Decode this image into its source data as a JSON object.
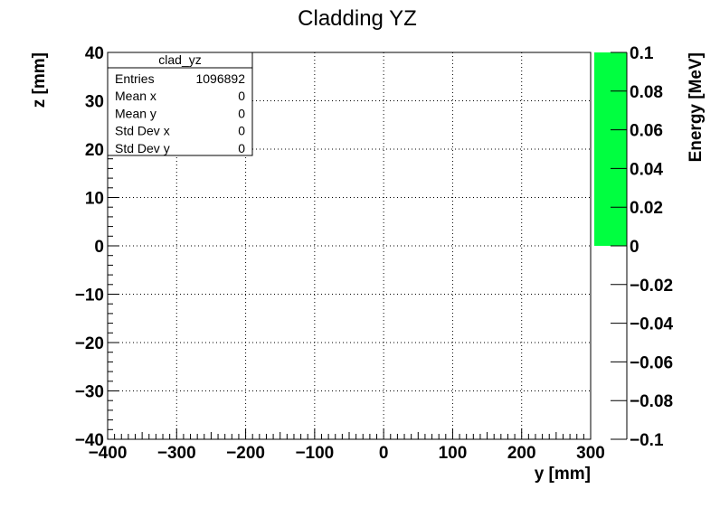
{
  "chart_data": {
    "type": "heatmap",
    "title": "Cladding YZ",
    "xlabel": "y [mm]",
    "ylabel": "z [mm]",
    "zlabel": "Energy [MeV]",
    "xlim": [
      -400,
      300
    ],
    "ylim": [
      -40,
      40
    ],
    "zlim": [
      -0.1,
      0.1
    ],
    "x_ticks": [
      -400,
      -300,
      -200,
      -100,
      0,
      100,
      200,
      300
    ],
    "x_tick_labels": [
      "−400",
      "−300",
      "−200",
      "−100",
      "0",
      "100",
      "200",
      "300"
    ],
    "y_ticks": [
      -40,
      -30,
      -20,
      -10,
      0,
      10,
      20,
      30,
      40
    ],
    "y_tick_labels": [
      "−40",
      "−30",
      "−20",
      "−10",
      "0",
      "10",
      "20",
      "30",
      "40"
    ],
    "z_ticks": [
      -0.1,
      -0.08,
      -0.06,
      -0.04,
      -0.02,
      0,
      0.02,
      0.04,
      0.06,
      0.08,
      0.1
    ],
    "z_tick_labels": [
      "−0.1",
      "−0.08",
      "−0.06",
      "−0.04",
      "−0.02",
      "0",
      "0.02",
      "0.04",
      "0.06",
      "0.08",
      "0.1"
    ],
    "palette_fill": {
      "from": 0,
      "to": 0.1,
      "color": "#00ff40"
    },
    "grid": true,
    "stats_box": {
      "title": "clad_yz",
      "placement": "top-left",
      "rows": [
        {
          "label": "Entries",
          "value": "1096892"
        },
        {
          "label": "Mean x",
          "value": "0"
        },
        {
          "label": "Mean y",
          "value": "0"
        },
        {
          "label": "Std Dev x",
          "value": "0"
        },
        {
          "label": "Std Dev y",
          "value": "0"
        }
      ]
    }
  }
}
